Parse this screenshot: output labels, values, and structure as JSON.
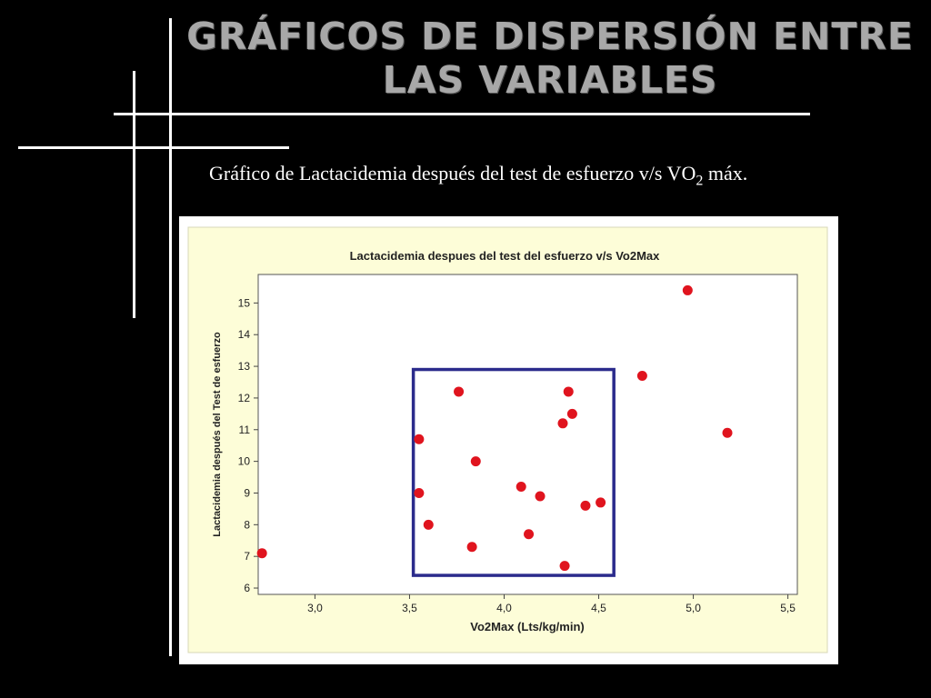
{
  "slide": {
    "title": "Gráficos de dispersión entre las variables",
    "subtitle_part1": "Gráfico de Lactacidemia después del test de esfuerzo v/s VO",
    "subtitle_sub": "2",
    "subtitle_part2": " máx."
  },
  "colors": {
    "background": "#000000",
    "chart_outer": "#fdfdd8",
    "plot_area": "#ffffff",
    "point": "#e0141e",
    "highlight_box": "#2b2b8c"
  },
  "chart_data": {
    "type": "scatter",
    "title": "Lactacidemia despues del test del esfuerzo v/s Vo2Max",
    "xlabel": "Vo2Max (Lts/kg/min)",
    "ylabel": "Lactacidemia después del Test de esfuerzo",
    "xlim": [
      2.7,
      5.55
    ],
    "ylim": [
      5.8,
      15.9
    ],
    "xticks": [
      "3,0",
      "3,5",
      "4,0",
      "4,5",
      "5,0",
      "5,5"
    ],
    "yticks": [
      "6",
      "7",
      "8",
      "9",
      "10",
      "11",
      "12",
      "13",
      "14",
      "15"
    ],
    "grid": false,
    "points": [
      {
        "x": 2.72,
        "y": 7.1
      },
      {
        "x": 3.55,
        "y": 10.7
      },
      {
        "x": 3.55,
        "y": 9.0
      },
      {
        "x": 3.6,
        "y": 8.0
      },
      {
        "x": 3.76,
        "y": 12.2
      },
      {
        "x": 3.83,
        "y": 7.3
      },
      {
        "x": 3.85,
        "y": 10.0
      },
      {
        "x": 4.09,
        "y": 9.2
      },
      {
        "x": 4.13,
        "y": 7.7
      },
      {
        "x": 4.19,
        "y": 8.9
      },
      {
        "x": 4.31,
        "y": 11.2
      },
      {
        "x": 4.32,
        "y": 6.7
      },
      {
        "x": 4.34,
        "y": 12.2
      },
      {
        "x": 4.36,
        "y": 11.5
      },
      {
        "x": 4.43,
        "y": 8.6
      },
      {
        "x": 4.51,
        "y": 8.7
      },
      {
        "x": 4.73,
        "y": 12.7
      },
      {
        "x": 4.97,
        "y": 15.4
      },
      {
        "x": 5.18,
        "y": 10.9
      }
    ],
    "highlight_box": {
      "x_from": 3.52,
      "x_to": 4.58,
      "y_from": 6.4,
      "y_to": 12.9
    }
  }
}
